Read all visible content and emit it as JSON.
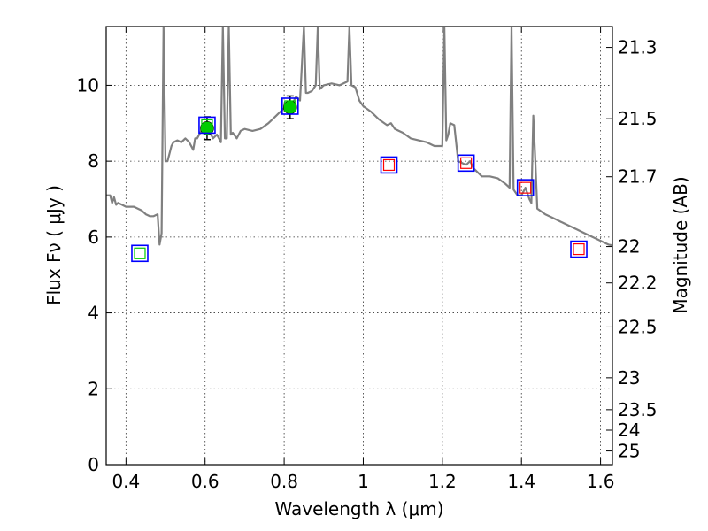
{
  "chart_data": {
    "type": "line",
    "xlabel": "Wavelength  λ (μm)",
    "ylabel": "Flux  Fν  ( μJy )",
    "y2label": "Magnitude (AB)",
    "xlim": [
      0.35,
      1.63
    ],
    "ylim": [
      0,
      11.55
    ],
    "grid": true,
    "x_ticks": [
      0.4,
      0.6,
      0.8,
      1.0,
      1.2,
      1.4,
      1.6
    ],
    "x_tick_labels": [
      "0.4",
      "0.6",
      "0.8",
      "1",
      "1.2",
      "1.4",
      "1.6"
    ],
    "y_ticks": [
      0,
      2,
      4,
      6,
      8,
      10
    ],
    "y_tick_labels": [
      "0",
      "2",
      "4",
      "6",
      "8",
      "10"
    ],
    "y2_ticks": [
      {
        "label": "21.3",
        "flux": 11.0
      },
      {
        "label": "21.5",
        "flux": 9.12
      },
      {
        "label": "21.7",
        "flux": 7.59
      },
      {
        "label": "22",
        "flux": 5.75
      },
      {
        "label": "22.2",
        "flux": 4.79
      },
      {
        "label": "22.5",
        "flux": 3.63
      },
      {
        "label": "23",
        "flux": 2.29
      },
      {
        "label": "23.5",
        "flux": 1.45
      },
      {
        "label": "24",
        "flux": 0.91
      },
      {
        "label": "25",
        "flux": 0.36
      }
    ],
    "series": [
      {
        "name": "model-spectrum",
        "color": "#808080",
        "points": [
          [
            0.35,
            7.1
          ],
          [
            0.36,
            7.1
          ],
          [
            0.365,
            6.9
          ],
          [
            0.37,
            7.05
          ],
          [
            0.375,
            6.85
          ],
          [
            0.38,
            6.9
          ],
          [
            0.39,
            6.85
          ],
          [
            0.4,
            6.8
          ],
          [
            0.42,
            6.8
          ],
          [
            0.44,
            6.7
          ],
          [
            0.45,
            6.6
          ],
          [
            0.46,
            6.55
          ],
          [
            0.47,
            6.55
          ],
          [
            0.48,
            6.6
          ],
          [
            0.485,
            5.8
          ],
          [
            0.49,
            6.1
          ],
          [
            0.495,
            11.55
          ],
          [
            0.5,
            8.0
          ],
          [
            0.505,
            8.0
          ],
          [
            0.51,
            8.2
          ],
          [
            0.515,
            8.4
          ],
          [
            0.52,
            8.5
          ],
          [
            0.53,
            8.55
          ],
          [
            0.54,
            8.5
          ],
          [
            0.55,
            8.6
          ],
          [
            0.56,
            8.5
          ],
          [
            0.57,
            8.3
          ],
          [
            0.575,
            8.6
          ],
          [
            0.58,
            8.6
          ],
          [
            0.59,
            8.8
          ],
          [
            0.6,
            8.9
          ],
          [
            0.61,
            8.8
          ],
          [
            0.62,
            8.6
          ],
          [
            0.63,
            8.7
          ],
          [
            0.635,
            8.6
          ],
          [
            0.64,
            8.5
          ],
          [
            0.645,
            11.55
          ],
          [
            0.65,
            8.6
          ],
          [
            0.655,
            8.6
          ],
          [
            0.66,
            11.55
          ],
          [
            0.665,
            8.7
          ],
          [
            0.67,
            8.75
          ],
          [
            0.68,
            8.6
          ],
          [
            0.69,
            8.8
          ],
          [
            0.7,
            8.85
          ],
          [
            0.72,
            8.8
          ],
          [
            0.74,
            8.85
          ],
          [
            0.76,
            9.0
          ],
          [
            0.78,
            9.2
          ],
          [
            0.79,
            9.3
          ],
          [
            0.8,
            9.4
          ],
          [
            0.81,
            9.45
          ],
          [
            0.82,
            9.5
          ],
          [
            0.83,
            9.7
          ],
          [
            0.84,
            9.6
          ],
          [
            0.85,
            11.55
          ],
          [
            0.855,
            9.8
          ],
          [
            0.86,
            9.8
          ],
          [
            0.87,
            9.85
          ],
          [
            0.88,
            10.0
          ],
          [
            0.885,
            11.55
          ],
          [
            0.89,
            9.9
          ],
          [
            0.9,
            10.0
          ],
          [
            0.92,
            10.05
          ],
          [
            0.94,
            10.0
          ],
          [
            0.95,
            10.05
          ],
          [
            0.96,
            10.1
          ],
          [
            0.965,
            11.55
          ],
          [
            0.97,
            10.0
          ],
          [
            0.98,
            9.95
          ],
          [
            0.99,
            9.6
          ],
          [
            1.0,
            9.45
          ],
          [
            1.02,
            9.3
          ],
          [
            1.04,
            9.1
          ],
          [
            1.06,
            8.95
          ],
          [
            1.07,
            9.0
          ],
          [
            1.08,
            8.85
          ],
          [
            1.1,
            8.75
          ],
          [
            1.12,
            8.6
          ],
          [
            1.14,
            8.55
          ],
          [
            1.16,
            8.5
          ],
          [
            1.18,
            8.4
          ],
          [
            1.2,
            8.4
          ],
          [
            1.205,
            11.55
          ],
          [
            1.21,
            8.55
          ],
          [
            1.215,
            8.7
          ],
          [
            1.22,
            9.0
          ],
          [
            1.23,
            8.95
          ],
          [
            1.24,
            8.0
          ],
          [
            1.25,
            7.95
          ],
          [
            1.26,
            7.9
          ],
          [
            1.27,
            8.0
          ],
          [
            1.28,
            7.8
          ],
          [
            1.3,
            7.6
          ],
          [
            1.32,
            7.6
          ],
          [
            1.34,
            7.55
          ],
          [
            1.36,
            7.4
          ],
          [
            1.37,
            7.3
          ],
          [
            1.375,
            11.55
          ],
          [
            1.38,
            7.25
          ],
          [
            1.39,
            7.1
          ],
          [
            1.4,
            7.1
          ],
          [
            1.41,
            7.3
          ],
          [
            1.42,
            7.0
          ],
          [
            1.425,
            6.9
          ],
          [
            1.43,
            9.2
          ],
          [
            1.435,
            8.0
          ],
          [
            1.44,
            6.75
          ],
          [
            1.46,
            6.6
          ],
          [
            1.48,
            6.5
          ],
          [
            1.5,
            6.4
          ],
          [
            1.52,
            6.3
          ],
          [
            1.54,
            6.2
          ],
          [
            1.56,
            6.1
          ],
          [
            1.58,
            6.0
          ],
          [
            1.6,
            5.9
          ],
          [
            1.62,
            5.8
          ],
          [
            1.63,
            5.78
          ]
        ]
      }
    ],
    "photometry_observed": [
      {
        "x": 0.605,
        "y": 8.87,
        "yerr": 0.3,
        "color": "#00cc00"
      },
      {
        "x": 0.815,
        "y": 9.42,
        "yerr": 0.3,
        "color": "#00cc00"
      }
    ],
    "photometry_model_boxes": [
      {
        "x": 0.435,
        "y": 5.57,
        "outer": "#0000ff",
        "inner": "#00cc00"
      },
      {
        "x": 0.605,
        "y": 8.95,
        "outer": "#0000ff",
        "inner": "#00cc00"
      },
      {
        "x": 0.815,
        "y": 9.45,
        "outer": "#0000ff",
        "inner": "#00cc00"
      },
      {
        "x": 1.065,
        "y": 7.9,
        "outer": "#0000ff",
        "inner": "#ff0000"
      },
      {
        "x": 1.26,
        "y": 7.95,
        "outer": "#0000ff",
        "inner": "#ff0000"
      },
      {
        "x": 1.41,
        "y": 7.3,
        "outer": "#0000ff",
        "inner": "#ff0000"
      },
      {
        "x": 1.545,
        "y": 5.68,
        "outer": "#0000ff",
        "inner": "#ff0000"
      }
    ]
  }
}
